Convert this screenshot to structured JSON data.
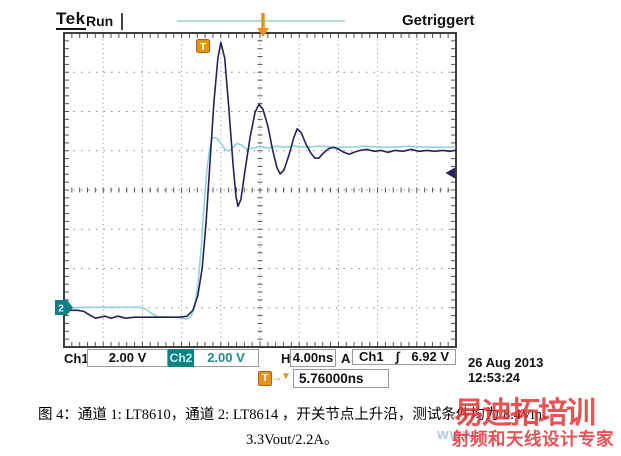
{
  "scope": {
    "brand": "Tek",
    "acq_status": "Run",
    "trigger_status": "Getriggert",
    "readouts": {
      "ch1_label": "Ch1",
      "ch1_scale": "2.00 V",
      "ch2_label": "Ch2",
      "ch2_scale": "2.00 V",
      "horiz_label": "H",
      "horiz_scale": "4.00ns",
      "trig_mode_label": "A",
      "trig_source": "Ch1",
      "trig_edge_symbol": "∫",
      "trig_level": "6.92 V",
      "delay_readout": "5.76000ns",
      "delay_arrow": "→",
      "delay_tri": "▼"
    },
    "date": "26 Aug 2013",
    "time": "12:53:24",
    "markers": {
      "trigger_badge": "T",
      "ch2_position_marker": "2"
    }
  },
  "caption": {
    "line1": "图 4：通道 1: LT8610，通道 2: LT8614 ，开关节点上升沿，测试条件均为 8.4Vin、",
    "line2": "3.3Vout/2.2A。"
  },
  "watermark": {
    "brand": "易迪拓培训",
    "tagline": "射频和天线设计专家",
    "url_fragment": "www"
  },
  "colors": {
    "ch1_trace": "#23235c",
    "ch2_trace": "#8fd4da",
    "ch2_badge": "#0e7f85",
    "accent_orange": "#e8921c",
    "grid": "#8a8a8a",
    "frame": "#3f3f3f",
    "watermark_red": "#e43535",
    "watermark_blue": "#a9cbe9",
    "preview_line": "#9ccfd4"
  },
  "chart_data": {
    "type": "line",
    "title": "Switch node rising edge, Ch1: LT8610 vs Ch2: LT8614",
    "x_unit": "ns",
    "y_unit": "V",
    "ns_per_div": 4,
    "volts_per_div": 2,
    "divisions_x": 10,
    "divisions_y": 8,
    "x_range_ns": [
      0,
      40
    ],
    "grid": "dotted",
    "legend_position": "none",
    "series": [
      {
        "name": "Ch1 (LT8610)",
        "color": "#23235c",
        "zero_div_from_bottom": 0.76,
        "points": [
          [
            0,
            0.35
          ],
          [
            1.4,
            0.35
          ],
          [
            2.0,
            0.3
          ],
          [
            2.65,
            0.1
          ],
          [
            3.2,
            -0.05
          ],
          [
            3.7,
            0
          ],
          [
            4.2,
            0.05
          ],
          [
            4.8,
            -0.05
          ],
          [
            5.5,
            0.05
          ],
          [
            6.3,
            -0.05
          ],
          [
            7.2,
            0
          ],
          [
            8.8,
            0
          ],
          [
            10.6,
            0
          ],
          [
            11.8,
            0
          ],
          [
            12.55,
            0.05
          ],
          [
            13.15,
            0.35
          ],
          [
            13.65,
            1.1
          ],
          [
            14.1,
            2.5
          ],
          [
            14.5,
            4.85
          ],
          [
            14.9,
            7.9
          ],
          [
            15.3,
            10.95
          ],
          [
            15.7,
            13.2
          ],
          [
            16.0,
            14.0
          ],
          [
            16.4,
            13.2
          ],
          [
            16.8,
            10.8
          ],
          [
            17.25,
            7.75
          ],
          [
            17.55,
            6.15
          ],
          [
            17.75,
            5.65
          ],
          [
            18.05,
            6.0
          ],
          [
            18.45,
            7.4
          ],
          [
            19.0,
            9.2
          ],
          [
            19.5,
            10.45
          ],
          [
            19.9,
            10.85
          ],
          [
            20.3,
            10.6
          ],
          [
            20.8,
            9.75
          ],
          [
            21.3,
            8.5
          ],
          [
            21.75,
            7.6
          ],
          [
            22.05,
            7.3
          ],
          [
            22.45,
            7.5
          ],
          [
            22.95,
            8.25
          ],
          [
            23.45,
            9.15
          ],
          [
            23.8,
            9.6
          ],
          [
            24.2,
            9.4
          ],
          [
            24.7,
            8.8
          ],
          [
            25.2,
            8.35
          ],
          [
            25.6,
            8.1
          ],
          [
            26.0,
            8.1
          ],
          [
            26.55,
            8.4
          ],
          [
            27.05,
            8.6
          ],
          [
            27.55,
            8.65
          ],
          [
            28.05,
            8.55
          ],
          [
            28.55,
            8.4
          ],
          [
            29.1,
            8.3
          ],
          [
            29.6,
            8.4
          ],
          [
            30.2,
            8.5
          ],
          [
            30.9,
            8.55
          ],
          [
            31.65,
            8.45
          ],
          [
            32.35,
            8.5
          ],
          [
            33.05,
            8.4
          ],
          [
            33.8,
            8.5
          ],
          [
            34.6,
            8.45
          ],
          [
            35.4,
            8.55
          ],
          [
            36.2,
            8.45
          ],
          [
            37.05,
            8.5
          ],
          [
            37.85,
            8.45
          ],
          [
            38.65,
            8.5
          ],
          [
            39.4,
            8.45
          ],
          [
            39.9,
            8.5
          ]
        ]
      },
      {
        "name": "Ch2 (LT8614)",
        "color": "#8fd4da",
        "zero_div_from_bottom": 0.99,
        "points": [
          [
            0,
            0
          ],
          [
            2.65,
            0.05
          ],
          [
            5.7,
            0.05
          ],
          [
            7.75,
            0.05
          ],
          [
            8.35,
            -0.05
          ],
          [
            9.0,
            -0.3
          ],
          [
            9.6,
            -0.45
          ],
          [
            10.8,
            -0.45
          ],
          [
            11.85,
            -0.5
          ],
          [
            12.45,
            -0.55
          ],
          [
            12.95,
            -0.45
          ],
          [
            13.35,
            0.1
          ],
          [
            13.65,
            1.15
          ],
          [
            14.0,
            3.05
          ],
          [
            14.3,
            5.25
          ],
          [
            14.6,
            7.15
          ],
          [
            14.9,
            8.25
          ],
          [
            15.2,
            8.7
          ],
          [
            15.6,
            8.65
          ],
          [
            16.0,
            8.4
          ],
          [
            16.4,
            8.1
          ],
          [
            16.85,
            8.0
          ],
          [
            17.25,
            8.2
          ],
          [
            17.65,
            8.4
          ],
          [
            18.15,
            8.3
          ],
          [
            18.65,
            8.1
          ],
          [
            19.3,
            8.15
          ],
          [
            20.0,
            8.25
          ],
          [
            20.8,
            8.15
          ],
          [
            21.65,
            8.25
          ],
          [
            22.55,
            8.2
          ],
          [
            23.55,
            8.25
          ],
          [
            24.8,
            8.2
          ],
          [
            26.1,
            8.25
          ],
          [
            27.65,
            8.2
          ],
          [
            29.2,
            8.2
          ],
          [
            30.7,
            8.25
          ],
          [
            32.25,
            8.2
          ],
          [
            33.8,
            8.2
          ],
          [
            35.3,
            8.25
          ],
          [
            36.85,
            8.2
          ],
          [
            38.35,
            8.2
          ],
          [
            39.9,
            8.2
          ]
        ]
      }
    ],
    "annotations": {
      "trigger_level_V": 6.92,
      "trigger_source": "Ch1",
      "trigger_edge": "rising",
      "delay_ns": 5.76
    }
  }
}
